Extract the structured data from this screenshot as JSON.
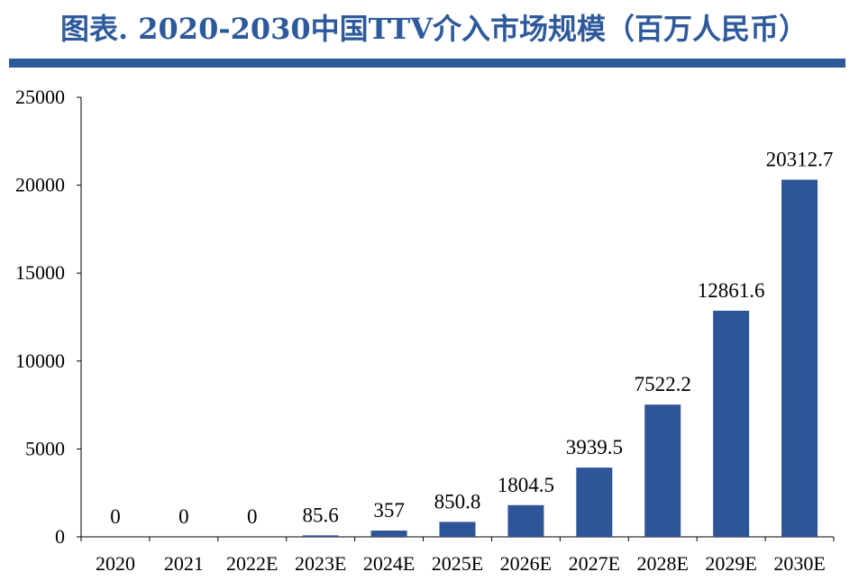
{
  "header": {
    "title": "图表. 2020-2030中国TTV介入市场规模（百万人民币）",
    "accent_color": "#2E5A9B"
  },
  "chart_data": {
    "type": "bar",
    "title": "图表. 2020-2030中国TTV介入市场规模（百万人民币）",
    "xlabel": "",
    "ylabel": "",
    "ylim": [
      0,
      25000
    ],
    "yticks": [
      "0",
      "5000",
      "10000",
      "15000",
      "20000",
      "25000"
    ],
    "grid": false,
    "bar_color": "#2E5597",
    "categories": [
      "2020",
      "2021",
      "2022E",
      "2023E",
      "2024E",
      "2025E",
      "2026E",
      "2027E",
      "2028E",
      "2029E",
      "2030E"
    ],
    "values": [
      0,
      0,
      0,
      85.6,
      357,
      850.8,
      1804.5,
      3939.5,
      7522.2,
      12861.6,
      20312.7
    ],
    "data_labels": [
      "0",
      "0",
      "0",
      "85.6",
      "357",
      "850.8",
      "1804.5",
      "3939.5",
      "7522.2",
      "12861.6",
      "20312.7"
    ]
  }
}
